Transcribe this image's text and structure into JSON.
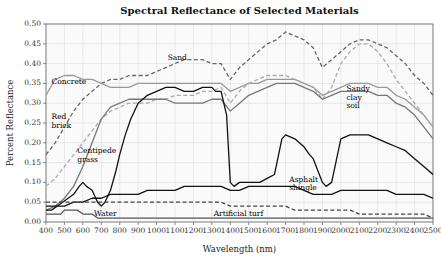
{
  "chart_data": {
    "type": "line",
    "title": "Spectral Reflectance of Selected Materials",
    "x_label": "Wavelength (nm)",
    "y_label": "Percent Reflectance",
    "xlim": [
      400,
      2500
    ],
    "ylim": [
      0.0,
      0.5
    ],
    "xticks": [
      400,
      500,
      600,
      700,
      800,
      900,
      1000,
      1100,
      1200,
      1300,
      1400,
      1500,
      1600,
      1700,
      1800,
      1900,
      2000,
      2100,
      2200,
      2300,
      2400,
      2500
    ],
    "yticks": [
      {
        "value": 0.0,
        "label": "0.00"
      },
      {
        "value": 0.05,
        "label": "0.05"
      },
      {
        "value": 0.1,
        "label": "0.10"
      },
      {
        "value": 0.15,
        "label": "0.15"
      },
      {
        "value": 0.2,
        "label": "0.20"
      },
      {
        "value": 0.25,
        "label": "0.25"
      },
      {
        "value": 0.3,
        "label": "0.30"
      },
      {
        "value": 0.35,
        "label": "0.35"
      },
      {
        "value": 0.4,
        "label": "0.40"
      },
      {
        "value": 0.45,
        "label": "0.45"
      },
      {
        "value": 0.5,
        "label": "0.50"
      }
    ],
    "grid": true,
    "series": [
      {
        "color": "#666666",
        "line_style": "dashed",
        "x": [
          400,
          450,
          500,
          550,
          600,
          650,
          700,
          750,
          800,
          850,
          900,
          950,
          1000,
          1050,
          1100,
          1150,
          1200,
          1250,
          1300,
          1350,
          1400,
          1450,
          1500,
          1550,
          1600,
          1650,
          1700,
          1750,
          1800,
          1850,
          1900,
          1950,
          2000,
          2050,
          2100,
          2150,
          2200,
          2250,
          2300,
          2350,
          2400,
          2450,
          2500
        ],
        "values": [
          0.17,
          0.2,
          0.24,
          0.28,
          0.31,
          0.33,
          0.35,
          0.36,
          0.36,
          0.37,
          0.37,
          0.37,
          0.38,
          0.39,
          0.4,
          0.41,
          0.41,
          0.41,
          0.4,
          0.4,
          0.36,
          0.39,
          0.41,
          0.43,
          0.45,
          0.46,
          0.48,
          0.47,
          0.46,
          0.44,
          0.39,
          0.41,
          0.43,
          0.45,
          0.46,
          0.46,
          0.45,
          0.44,
          0.42,
          0.4,
          0.37,
          0.35,
          0.32
        ]
      },
      {
        "color": "#999999",
        "line_style": "solid",
        "x": [
          400,
          450,
          500,
          550,
          600,
          650,
          700,
          750,
          800,
          850,
          900,
          950,
          1000,
          1050,
          1100,
          1150,
          1200,
          1250,
          1300,
          1350,
          1400,
          1450,
          1500,
          1550,
          1600,
          1650,
          1700,
          1750,
          1800,
          1850,
          1900,
          1950,
          2000,
          2050,
          2100,
          2150,
          2200,
          2250,
          2300,
          2350,
          2400,
          2450,
          2500
        ],
        "values": [
          0.32,
          0.36,
          0.37,
          0.37,
          0.36,
          0.36,
          0.35,
          0.34,
          0.34,
          0.34,
          0.35,
          0.35,
          0.35,
          0.35,
          0.35,
          0.35,
          0.35,
          0.35,
          0.35,
          0.35,
          0.33,
          0.34,
          0.35,
          0.35,
          0.36,
          0.36,
          0.36,
          0.36,
          0.35,
          0.34,
          0.32,
          0.33,
          0.34,
          0.35,
          0.35,
          0.35,
          0.34,
          0.34,
          0.32,
          0.31,
          0.29,
          0.27,
          0.24
        ]
      },
      {
        "color": "#aaaaaa",
        "line_style": "dashed",
        "x": [
          400,
          450,
          500,
          550,
          600,
          650,
          700,
          750,
          800,
          850,
          900,
          950,
          1000,
          1050,
          1100,
          1150,
          1200,
          1250,
          1300,
          1350,
          1400,
          1450,
          1500,
          1550,
          1600,
          1650,
          1700,
          1750,
          1800,
          1850,
          1900,
          1950,
          2000,
          2050,
          2100,
          2150,
          2200,
          2250,
          2300,
          2350,
          2400,
          2450,
          2500
        ],
        "values": [
          0.09,
          0.11,
          0.14,
          0.17,
          0.2,
          0.23,
          0.26,
          0.28,
          0.29,
          0.3,
          0.3,
          0.3,
          0.31,
          0.31,
          0.32,
          0.32,
          0.32,
          0.33,
          0.33,
          0.34,
          0.3,
          0.33,
          0.35,
          0.36,
          0.37,
          0.37,
          0.37,
          0.36,
          0.35,
          0.34,
          0.31,
          0.34,
          0.4,
          0.43,
          0.45,
          0.45,
          0.43,
          0.4,
          0.36,
          0.33,
          0.3,
          0.27,
          0.24
        ]
      },
      {
        "color": "#777777",
        "line_style": "solid",
        "x": [
          400,
          450,
          500,
          550,
          600,
          650,
          700,
          750,
          800,
          850,
          900,
          950,
          1000,
          1050,
          1100,
          1150,
          1200,
          1250,
          1300,
          1350,
          1400,
          1450,
          1500,
          1550,
          1600,
          1650,
          1700,
          1750,
          1800,
          1850,
          1900,
          1950,
          2000,
          2050,
          2100,
          2150,
          2200,
          2250,
          2300,
          2350,
          2400,
          2450,
          2500
        ],
        "values": [
          0.03,
          0.04,
          0.06,
          0.09,
          0.14,
          0.2,
          0.26,
          0.29,
          0.3,
          0.31,
          0.31,
          0.31,
          0.31,
          0.31,
          0.3,
          0.3,
          0.3,
          0.3,
          0.31,
          0.31,
          0.28,
          0.3,
          0.32,
          0.33,
          0.34,
          0.35,
          0.35,
          0.35,
          0.34,
          0.33,
          0.31,
          0.32,
          0.33,
          0.33,
          0.33,
          0.33,
          0.32,
          0.32,
          0.3,
          0.29,
          0.27,
          0.24,
          0.21
        ]
      },
      {
        "color": "#111111",
        "line_style": "solid",
        "x": [
          400,
          430,
          460,
          490,
          520,
          550,
          580,
          600,
          620,
          650,
          680,
          700,
          720,
          750,
          780,
          800,
          830,
          860,
          900,
          950,
          1000,
          1050,
          1100,
          1150,
          1200,
          1250,
          1280,
          1300,
          1320,
          1350,
          1380,
          1400,
          1420,
          1450,
          1480,
          1500,
          1530,
          1560,
          1600,
          1640,
          1680,
          1700,
          1750,
          1800,
          1830,
          1850,
          1900,
          1920,
          1950,
          2000,
          2050,
          2100,
          2150,
          2200,
          2250,
          2300,
          2350,
          2400,
          2450,
          2500
        ],
        "values": [
          0.03,
          0.03,
          0.04,
          0.05,
          0.06,
          0.07,
          0.09,
          0.1,
          0.09,
          0.08,
          0.05,
          0.04,
          0.05,
          0.08,
          0.13,
          0.17,
          0.22,
          0.26,
          0.3,
          0.32,
          0.33,
          0.34,
          0.34,
          0.33,
          0.33,
          0.34,
          0.34,
          0.34,
          0.33,
          0.33,
          0.27,
          0.1,
          0.09,
          0.1,
          0.1,
          0.1,
          0.1,
          0.1,
          0.11,
          0.12,
          0.21,
          0.22,
          0.21,
          0.19,
          0.17,
          0.16,
          0.1,
          0.09,
          0.1,
          0.21,
          0.22,
          0.22,
          0.22,
          0.21,
          0.2,
          0.19,
          0.18,
          0.16,
          0.14,
          0.12
        ]
      },
      {
        "color": "#111111",
        "line_style": "solid",
        "x": [
          400,
          450,
          500,
          550,
          600,
          650,
          700,
          750,
          800,
          850,
          900,
          950,
          1000,
          1050,
          1100,
          1150,
          1200,
          1250,
          1300,
          1350,
          1400,
          1450,
          1500,
          1550,
          1600,
          1650,
          1700,
          1750,
          1800,
          1850,
          1900,
          1950,
          2000,
          2050,
          2100,
          2150,
          2200,
          2250,
          2300,
          2350,
          2400,
          2450,
          2500
        ],
        "values": [
          0.04,
          0.04,
          0.04,
          0.05,
          0.05,
          0.06,
          0.06,
          0.07,
          0.07,
          0.07,
          0.07,
          0.08,
          0.08,
          0.08,
          0.08,
          0.09,
          0.09,
          0.09,
          0.09,
          0.09,
          0.08,
          0.08,
          0.09,
          0.09,
          0.09,
          0.09,
          0.09,
          0.09,
          0.08,
          0.07,
          0.07,
          0.07,
          0.08,
          0.08,
          0.08,
          0.08,
          0.08,
          0.08,
          0.07,
          0.07,
          0.07,
          0.07,
          0.06
        ]
      },
      {
        "color": "#555555",
        "line_style": "solid",
        "x": [
          400,
          430,
          450,
          480,
          500,
          520,
          550,
          570,
          600,
          630,
          650,
          680,
          700,
          720,
          750,
          800,
          850,
          900,
          950,
          1000,
          1100,
          1200,
          1300,
          1400,
          1500,
          1600,
          1700,
          1800,
          1900,
          2000,
          2100,
          2200,
          2300,
          2400,
          2500
        ],
        "values": [
          0.02,
          0.02,
          0.02,
          0.02,
          0.03,
          0.03,
          0.03,
          0.03,
          0.02,
          0.02,
          0.02,
          0.01,
          0.01,
          0.01,
          0.01,
          0.01,
          0.01,
          0.01,
          0.01,
          0.01,
          0.01,
          0.01,
          0.01,
          0.01,
          0.01,
          0.01,
          0.01,
          0.01,
          0.01,
          0.01,
          0.01,
          0.01,
          0.01,
          0.01,
          0.01
        ]
      },
      {
        "color": "#444444",
        "line_style": "dashed",
        "x": [
          400,
          450,
          500,
          550,
          600,
          650,
          700,
          750,
          800,
          850,
          900,
          950,
          1000,
          1050,
          1100,
          1150,
          1200,
          1250,
          1300,
          1350,
          1400,
          1450,
          1500,
          1550,
          1600,
          1650,
          1700,
          1750,
          1800,
          1850,
          1900,
          1950,
          2000,
          2050,
          2100,
          2150,
          2200,
          2250,
          2300,
          2350,
          2400,
          2450,
          2500
        ],
        "values": [
          0.05,
          0.05,
          0.05,
          0.05,
          0.05,
          0.05,
          0.05,
          0.05,
          0.05,
          0.05,
          0.05,
          0.05,
          0.05,
          0.05,
          0.05,
          0.05,
          0.05,
          0.05,
          0.05,
          0.05,
          0.04,
          0.04,
          0.04,
          0.04,
          0.04,
          0.04,
          0.04,
          0.03,
          0.03,
          0.03,
          0.03,
          0.03,
          0.03,
          0.03,
          0.02,
          0.02,
          0.02,
          0.02,
          0.02,
          0.02,
          0.02,
          0.02,
          0.01
        ]
      }
    ],
    "annotations": [
      {
        "text": "Sand",
        "x": 1060,
        "y": 0.415
      },
      {
        "text": "Concrete",
        "x": 430,
        "y": 0.355
      },
      {
        "text": "Sandy\nclay\nsoil",
        "x": 2030,
        "y": 0.315
      },
      {
        "text": "Red\nbrick",
        "x": 430,
        "y": 0.255
      },
      {
        "text": "Centipede\ngrass",
        "x": 570,
        "y": 0.17
      },
      {
        "text": "Asphalt\nshingle",
        "x": 1720,
        "y": 0.098
      },
      {
        "text": "Water",
        "x": 660,
        "y": 0.022
      },
      {
        "text": "Artificial turf",
        "x": 1310,
        "y": 0.022
      }
    ]
  }
}
